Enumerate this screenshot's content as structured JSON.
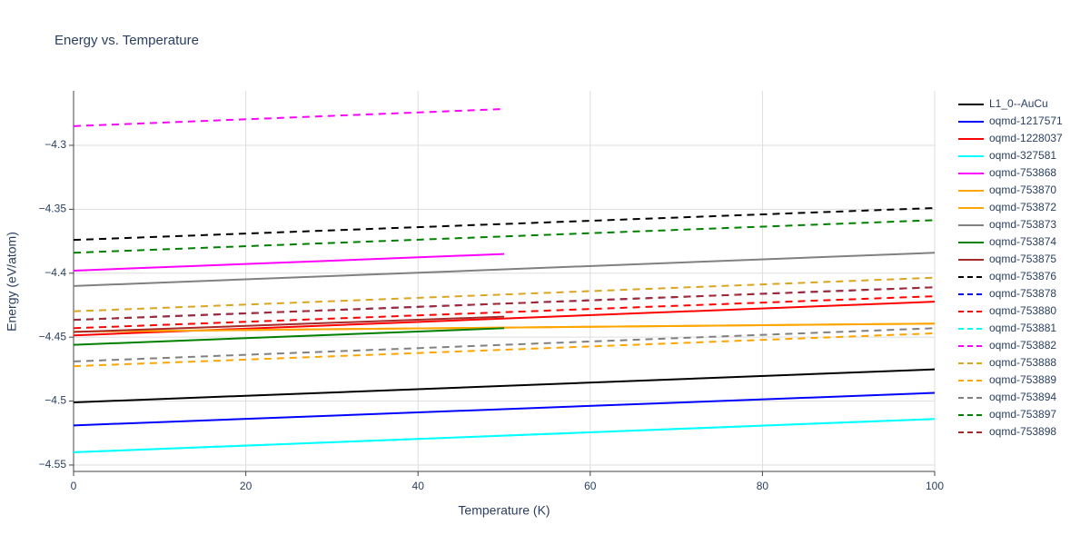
{
  "chart_data": {
    "type": "line",
    "title": "Energy vs. Temperature",
    "x_label": "Temperature (K)",
    "y_label": "Energy (eV/atom)",
    "xlim": [
      0,
      100
    ],
    "xticks": [
      0,
      20,
      40,
      60,
      80,
      100
    ],
    "ylim": [
      -4.555,
      -4.2574
    ],
    "yticks": [
      {
        "value": -4.3,
        "label": "−4.3"
      },
      {
        "value": -4.35,
        "label": "−4.35"
      },
      {
        "value": -4.4,
        "label": "−4.4"
      },
      {
        "value": -4.45,
        "label": "−4.45"
      },
      {
        "value": -4.5,
        "label": "−4.5"
      },
      {
        "value": -4.55,
        "label": "−4.55"
      }
    ],
    "grid": true,
    "legend": "right",
    "series": [
      {
        "name": "L1_0--AuCu",
        "color": "#000000",
        "dash": false,
        "x": [
          0,
          100
        ],
        "values": [
          -4.501,
          -4.4752
        ]
      },
      {
        "name": "oqmd-1217571",
        "color": "#0000ff",
        "dash": false,
        "x": [
          0,
          100
        ],
        "values": [
          -4.519,
          -4.4936
        ]
      },
      {
        "name": "oqmd-1228037",
        "color": "#ff0000",
        "dash": false,
        "x": [
          0,
          100
        ],
        "values": [
          -4.4486,
          -4.4223
        ]
      },
      {
        "name": "oqmd-327581",
        "color": "#00ffff",
        "dash": false,
        "x": [
          0,
          100
        ],
        "values": [
          -4.54,
          -4.514
        ]
      },
      {
        "name": "oqmd-753868",
        "color": "#ff00ff",
        "dash": false,
        "x": [
          0,
          50
        ],
        "values": [
          -4.398,
          -4.385
        ]
      },
      {
        "name": "oqmd-753870",
        "color": "#ffa500",
        "dash": false,
        "x": [
          0,
          100
        ],
        "values": [
          -4.4457,
          -4.4394
        ]
      },
      {
        "name": "oqmd-753872",
        "color": "#ffa500",
        "dash": false,
        "x": [
          0,
          100
        ],
        "values": [
          -4.4457,
          -4.4394
        ]
      },
      {
        "name": "oqmd-753873",
        "color": "#808080",
        "dash": false,
        "x": [
          0,
          100
        ],
        "values": [
          -4.41,
          -4.384
        ]
      },
      {
        "name": "oqmd-753874",
        "color": "#008000",
        "dash": false,
        "x": [
          0,
          50
        ],
        "values": [
          -4.456,
          -4.443
        ]
      },
      {
        "name": "oqmd-753875",
        "color": "#a52a2a",
        "dash": false,
        "x": [
          0,
          50
        ],
        "values": [
          -4.446,
          -4.434
        ]
      },
      {
        "name": "oqmd-753876",
        "color": "#000000",
        "dash": true,
        "x": [
          0,
          100
        ],
        "values": [
          -4.374,
          -4.349
        ]
      },
      {
        "name": "oqmd-753878",
        "color": "#0000ff",
        "dash": true,
        "x": [
          0,
          100
        ],
        "values": [
          -4.4365,
          -4.411
        ]
      },
      {
        "name": "oqmd-753880",
        "color": "#ff0000",
        "dash": true,
        "x": [
          0,
          100
        ],
        "values": [
          -4.443,
          -4.418
        ]
      },
      {
        "name": "oqmd-753881",
        "color": "#00ffff",
        "dash": true,
        "x": [
          0,
          100
        ],
        "values": [
          -4.54,
          -4.514
        ]
      },
      {
        "name": "oqmd-753882",
        "color": "#ff00ff",
        "dash": true,
        "x": [
          0,
          50
        ],
        "values": [
          -4.285,
          -4.2716
        ]
      },
      {
        "name": "oqmd-753888",
        "color": "#daa520",
        "dash": true,
        "x": [
          0,
          100
        ],
        "values": [
          -4.4298,
          -4.4035
        ]
      },
      {
        "name": "oqmd-753889",
        "color": "#ffa500",
        "dash": true,
        "x": [
          0,
          100
        ],
        "values": [
          -4.4727,
          -4.447
        ]
      },
      {
        "name": "oqmd-753894",
        "color": "#808080",
        "dash": true,
        "x": [
          0,
          100
        ],
        "values": [
          -4.469,
          -4.443
        ]
      },
      {
        "name": "oqmd-753897",
        "color": "#008000",
        "dash": true,
        "x": [
          0,
          100
        ],
        "values": [
          -4.384,
          -4.3585
        ]
      },
      {
        "name": "oqmd-753898",
        "color": "#a52a2a",
        "dash": true,
        "x": [
          0,
          100
        ],
        "values": [
          -4.4365,
          -4.411
        ]
      }
    ]
  }
}
